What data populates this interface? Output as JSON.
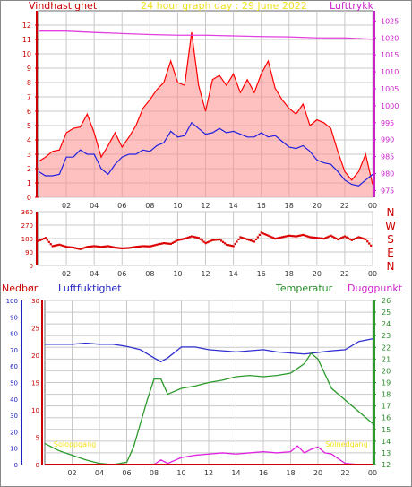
{
  "colors": {
    "background": "#ffffff",
    "frame": "#6b6b6b",
    "grid": "#c8c8c8",
    "wind_gust": "#ff0000",
    "wind_gust_fill": "#ff8c8c",
    "wind_mean": "#2020e0",
    "pressure": "#e040e0",
    "direction": "#dd0000",
    "humidity": "#3030d0",
    "temperature": "#2a9a2a",
    "dewpoint": "#e020e0",
    "precip": "#cc0000",
    "sun_label": "#f5e020",
    "title": "#f0e020"
  },
  "header": {
    "title": "24 hour graph day : 29 June 2022",
    "left_label": "Vindhastighet",
    "right_label": "Lufttrykk"
  },
  "chart_data": [
    {
      "type": "line",
      "panel": "wind",
      "x_ticks": [
        "02",
        "04",
        "06",
        "08",
        "10",
        "12",
        "14",
        "16",
        "18",
        "20",
        "22",
        "00"
      ],
      "xlim": [
        0,
        24
      ],
      "y_left": {
        "label": "Vindhastighet",
        "range": [
          0,
          13
        ],
        "ticks": [
          "0",
          "1",
          "2",
          "3",
          "4",
          "5",
          "6",
          "7",
          "8",
          "9",
          "10",
          "11",
          "12"
        ]
      },
      "y_right": {
        "label": "Lufttrykk",
        "range": [
          973,
          1028
        ],
        "ticks": [
          "975",
          "980",
          "985",
          "990",
          "995",
          "1000",
          "1005",
          "1010",
          "1015",
          "1020",
          "1025"
        ]
      },
      "grid": true,
      "series": [
        {
          "name": "Vindhastighet",
          "role": "gust",
          "axis": "left",
          "x": [
            0,
            0.5,
            1,
            1.5,
            2,
            2.5,
            3,
            3.5,
            4,
            4.5,
            5,
            5.5,
            6,
            6.5,
            7,
            7.5,
            8,
            8.5,
            9,
            9.5,
            10,
            10.5,
            11,
            11.5,
            12,
            12.5,
            13,
            13.5,
            14,
            14.5,
            15,
            15.5,
            16,
            16.5,
            17,
            17.5,
            18,
            18.5,
            19,
            19.5,
            20,
            20.5,
            21,
            21.5,
            22,
            22.5,
            23,
            23.5,
            24
          ],
          "y": [
            2.5,
            2.8,
            3.2,
            3.3,
            4.5,
            4.8,
            4.9,
            5.8,
            4.5,
            2.8,
            3.6,
            4.5,
            3.5,
            4.2,
            5,
            6.2,
            6.8,
            7.5,
            8,
            9.5,
            8,
            7.8,
            11.5,
            7.8,
            6,
            8.2,
            8.5,
            7.8,
            8.6,
            7.3,
            8.2,
            7.3,
            8.6,
            9.5,
            7.6,
            6.8,
            6.2,
            5.8,
            6.5,
            5,
            5.4,
            5.2,
            4.8,
            3.2,
            1.8,
            1.2,
            1.8,
            3,
            0.9
          ]
        },
        {
          "name": "Middelvind",
          "role": "mean",
          "axis": "left",
          "x": [
            0,
            0.5,
            1,
            1.5,
            2,
            2.5,
            3,
            3.5,
            4,
            4.5,
            5,
            5.5,
            6,
            6.5,
            7,
            7.5,
            8,
            8.5,
            9,
            9.5,
            10,
            10.5,
            11,
            11.5,
            12,
            12.5,
            13,
            13.5,
            14,
            14.5,
            15,
            15.5,
            16,
            16.5,
            17,
            17.5,
            18,
            18.5,
            19,
            19.5,
            20,
            20.5,
            21,
            21.5,
            22,
            22.5,
            23,
            23.5,
            24
          ],
          "y": [
            1.8,
            1.5,
            1.5,
            1.6,
            2.8,
            2.8,
            3.3,
            3,
            3,
            2,
            1.6,
            2.3,
            2.8,
            3,
            3,
            3.3,
            3.2,
            3.6,
            3.8,
            4.6,
            4.2,
            4.3,
            5.2,
            4.8,
            4.4,
            4.5,
            4.8,
            4.5,
            4.6,
            4.4,
            4.2,
            4.2,
            4.5,
            4.2,
            4.3,
            3.9,
            3.5,
            3.4,
            3.6,
            3.2,
            2.6,
            2.4,
            2.3,
            1.8,
            1.2,
            0.9,
            0.8,
            1.2,
            1.6
          ]
        },
        {
          "name": "Lufttrykk",
          "role": "pressure",
          "axis": "right",
          "x": [
            0,
            2,
            4,
            6,
            8,
            10,
            12,
            14,
            16,
            18,
            20,
            22,
            24
          ],
          "y": [
            1022,
            1022,
            1021.6,
            1021.3,
            1021,
            1020.8,
            1020.8,
            1020.6,
            1020.4,
            1020.3,
            1020,
            1020,
            1019.6
          ]
        }
      ]
    },
    {
      "type": "scatter",
      "panel": "direction",
      "x_ticks": [
        "02",
        "04",
        "06",
        "08",
        "10",
        "12",
        "14",
        "16",
        "18",
        "20",
        "22",
        "00"
      ],
      "xlim": [
        0,
        24
      ],
      "y_left": {
        "range": [
          0,
          360
        ],
        "ticks": [
          "0",
          "90",
          "180",
          "270",
          "360"
        ]
      },
      "y_right": {
        "range": [
          0,
          360
        ],
        "ticks": [
          "N",
          "W",
          "S",
          "E",
          "N"
        ]
      },
      "grid": true,
      "series": [
        {
          "name": "Vindretning",
          "x": [
            0,
            0.5,
            1,
            1.5,
            2,
            2.5,
            3,
            3.5,
            4,
            4.5,
            5,
            5.5,
            6,
            6.5,
            7,
            7.5,
            8,
            8.5,
            9,
            9.5,
            10,
            10.5,
            11,
            11.5,
            12,
            12.5,
            13,
            13.5,
            14,
            14.5,
            15,
            15.5,
            16,
            16.5,
            17,
            17.5,
            18,
            18.5,
            19,
            19.5,
            20,
            20.5,
            21,
            21.5,
            22,
            22.5,
            23,
            23.5,
            24
          ],
          "y": [
            165,
            185,
            130,
            140,
            125,
            120,
            110,
            125,
            130,
            125,
            130,
            120,
            115,
            118,
            125,
            130,
            128,
            140,
            150,
            145,
            170,
            180,
            195,
            185,
            150,
            170,
            175,
            140,
            130,
            190,
            175,
            160,
            220,
            200,
            180,
            190,
            200,
            195,
            205,
            190,
            185,
            180,
            200,
            175,
            195,
            170,
            190,
            175,
            120
          ]
        }
      ]
    },
    {
      "type": "line",
      "panel": "humidity-temperature",
      "x_ticks": [
        "02",
        "04",
        "06",
        "08",
        "10",
        "12",
        "14",
        "16",
        "18",
        "20",
        "22",
        "00"
      ],
      "xlim": [
        0,
        24
      ],
      "header_labels": [
        "Nedbør",
        "Luftfuktighet",
        "Temperatur",
        "Duggpunkt"
      ],
      "y_precip": {
        "range": [
          0,
          100
        ],
        "ticks": [
          "0",
          "10",
          "20",
          "30",
          "40",
          "50",
          "60",
          "70",
          "80",
          "90",
          "100"
        ]
      },
      "y_humidity": {
        "range": [
          0,
          30
        ],
        "ticks": [
          "0",
          "5",
          "10",
          "15",
          "20",
          "25",
          "30"
        ]
      },
      "y_temperature": {
        "range": [
          12,
          26
        ],
        "ticks": [
          "12",
          "13",
          "14",
          "15",
          "16",
          "17",
          "18",
          "19",
          "20",
          "21",
          "22",
          "23",
          "24",
          "25",
          "26"
        ]
      },
      "grid": true,
      "annotations": [
        {
          "text": "Soloppgang",
          "x": 2.2
        },
        {
          "text": "Solnedgang",
          "x": 22.1
        }
      ],
      "series": [
        {
          "name": "Luftfuktighet",
          "axis": "humidity",
          "x": [
            0,
            1,
            2,
            3,
            4,
            5,
            6,
            7,
            8,
            8.5,
            9,
            10,
            11,
            12,
            13,
            14,
            15,
            16,
            17,
            18,
            19,
            20,
            21,
            22,
            23,
            24
          ],
          "y": [
            22,
            22,
            22,
            22.2,
            22,
            22,
            21.6,
            21,
            19.5,
            18.8,
            19.5,
            21.5,
            21.5,
            21,
            20.8,
            20.6,
            20.8,
            21,
            20.6,
            20.4,
            20.2,
            20.5,
            20.8,
            21,
            22.5,
            23
          ]
        },
        {
          "name": "Temperatur",
          "axis": "temperature",
          "x": [
            0,
            1,
            2,
            3,
            4,
            5,
            6,
            6.5,
            7,
            7.5,
            8,
            8.5,
            9,
            10,
            11,
            12,
            13,
            14,
            15,
            16,
            17,
            18,
            19,
            19.5,
            20,
            21,
            22,
            23,
            24
          ],
          "y": [
            13.8,
            13.2,
            12.8,
            12.4,
            12.1,
            12,
            12.2,
            13.5,
            15.5,
            17.5,
            19.3,
            19.3,
            18,
            18.5,
            18.7,
            19.0,
            19.2,
            19.5,
            19.6,
            19.5,
            19.6,
            19.8,
            20.6,
            21.5,
            21,
            18.5,
            17.5,
            16.5,
            15.5
          ]
        },
        {
          "name": "Duggpunkt",
          "axis": "temperature",
          "x": [
            0,
            1,
            2,
            3,
            4,
            5,
            6,
            7,
            8,
            8.5,
            9,
            10,
            11,
            12,
            13,
            14,
            15,
            16,
            17,
            18,
            18.5,
            19,
            19.5,
            20,
            20.5,
            21,
            22,
            23,
            24
          ],
          "y": [
            12,
            12,
            12,
            12,
            12,
            12,
            12,
            12,
            12,
            12.4,
            12.1,
            12.6,
            12.8,
            12.9,
            13.0,
            12.9,
            13.0,
            13.1,
            13.0,
            13.1,
            13.6,
            13.0,
            13.3,
            13.5,
            13.0,
            12.9,
            12.1,
            12.0,
            12.0
          ]
        },
        {
          "name": "Nedbør",
          "axis": "precip",
          "x": [
            0,
            6,
            12,
            18,
            24
          ],
          "y": [
            0,
            0,
            0,
            0,
            0
          ]
        }
      ]
    }
  ]
}
